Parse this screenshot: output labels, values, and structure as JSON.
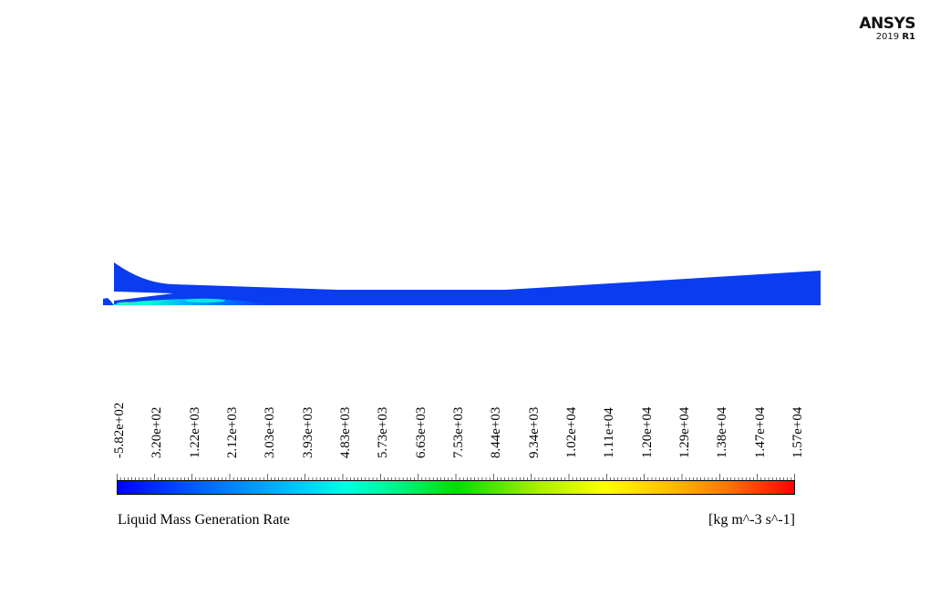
{
  "logo": {
    "brand": "ANSYS",
    "version_year": "2019",
    "version_release": "R1"
  },
  "colorbar": {
    "tick_labels": [
      "-5.82e+02",
      "3.20e+02",
      "1.22e+03",
      "2.12e+03",
      "3.03e+03",
      "3.93e+03",
      "4.83e+03",
      "5.73e+03",
      "6.63e+03",
      "7.53e+03",
      "8.44e+03",
      "9.34e+03",
      "1.02e+04",
      "1.11e+04",
      "1.20e+04",
      "1.29e+04",
      "1.38e+04",
      "1.47e+04",
      "1.57e+04"
    ],
    "min": -582,
    "max": 15700,
    "colormap": [
      "#0000ff",
      "#00c8ff",
      "#00dd00",
      "#ffff00",
      "#ff0000"
    ],
    "variable_label": "Liquid Mass Generation Rate",
    "units_label": "[kg m^-3 s^-1]"
  },
  "contour": {
    "dominant_color": "#0a3cf0"
  }
}
